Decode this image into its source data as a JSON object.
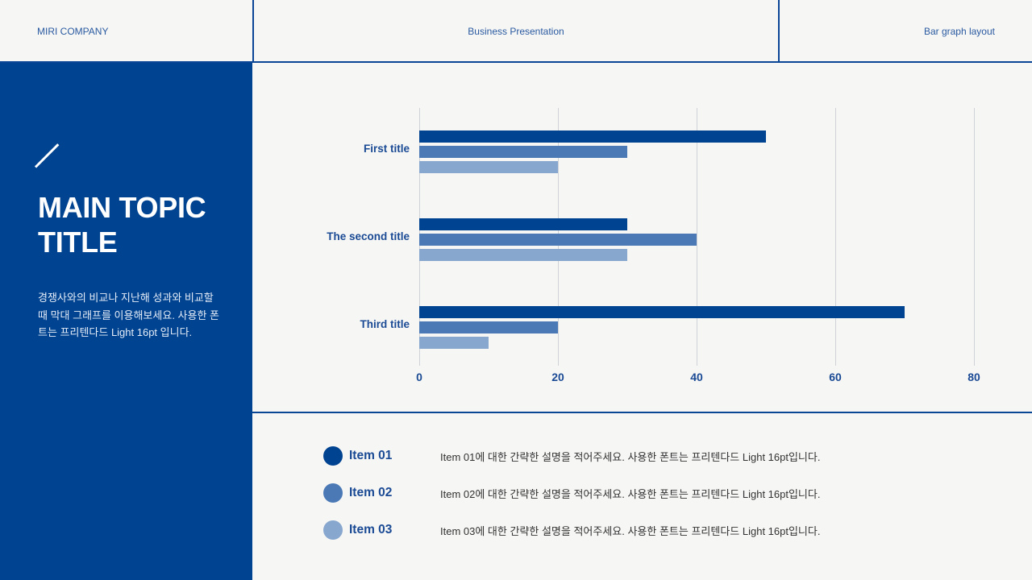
{
  "header": {
    "company": "MIRI COMPANY",
    "presentation": "Business Presentation",
    "layout_name": "Bar graph layout"
  },
  "sidebar": {
    "icon": "slash-decoration-icon",
    "title_line1": "MAIN TOPIC",
    "title_line2": "TITLE",
    "description": "경쟁사와의 비교나 지난해 성과와 비교할 때 막대 그래프를 이용해보세요. 사용한 폰트는 프리텐다드 Light 16pt 입니다."
  },
  "colors": {
    "primary": "#004391",
    "series2": "#4a79b6",
    "series3": "#87a7cf",
    "background": "#f6f6f5",
    "text_accent": "#1a4a94"
  },
  "chart_data": {
    "type": "bar",
    "orientation": "horizontal",
    "title": "",
    "xlabel": "",
    "ylabel": "",
    "categories": [
      "First title",
      "The second title",
      "Third title"
    ],
    "series": [
      {
        "name": "Item 01",
        "color": "#004391",
        "values": [
          50,
          30,
          70
        ]
      },
      {
        "name": "Item 02",
        "color": "#4a79b6",
        "values": [
          30,
          40,
          20
        ]
      },
      {
        "name": "Item 03",
        "color": "#87a7cf",
        "values": [
          20,
          30,
          10
        ]
      }
    ],
    "xlim": [
      0,
      80
    ],
    "x_ticks": [
      "0",
      "20",
      "40",
      "60",
      "80"
    ],
    "grid": true,
    "legend_position": "bottom"
  },
  "legend": {
    "items": [
      {
        "name": "Item 01",
        "description": "Item 01에 대한 간략한 설명을 적어주세요. 사용한 폰트는 프리텐다드 Light 16pt입니다."
      },
      {
        "name": "Item 02",
        "description": "Item 02에 대한 간략한 설명을 적어주세요. 사용한 폰트는 프리텐다드 Light 16pt입니다."
      },
      {
        "name": "Item 03",
        "description": "Item 03에 대한 간략한 설명을 적어주세요. 사용한 폰트는 프리텐다드 Light 16pt입니다."
      }
    ]
  }
}
